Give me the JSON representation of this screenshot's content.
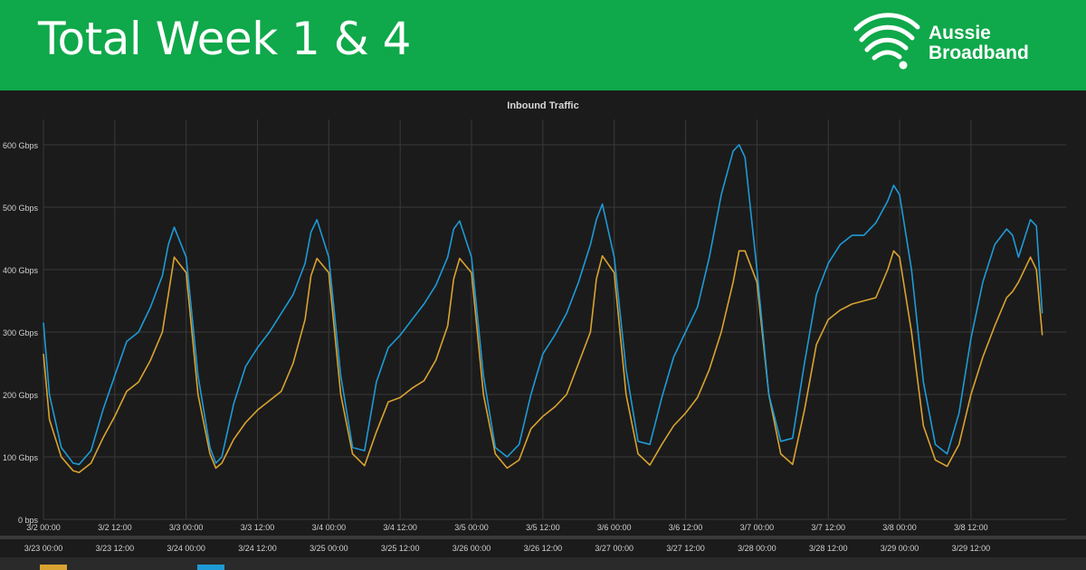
{
  "banner": {
    "title": "Total Week 1 & 4"
  },
  "brand": {
    "line1": "Aussie",
    "line2": "Broadband",
    "logo_icon": "wifi-signal-icon"
  },
  "colors": {
    "banner_green": "#0fa84a",
    "week1_series": "#d9a331",
    "week4_series": "#1e9ad6",
    "background": "#1b1b1b",
    "grid": "#3a3a3a"
  },
  "chart_data": {
    "type": "line",
    "title": "Inbound Traffic",
    "ylabel": "",
    "xlabel": "",
    "grid": true,
    "ylim": [
      0,
      600
    ],
    "yticks": [
      {
        "value": 0,
        "label": "0 bps"
      },
      {
        "value": 100,
        "label": "100 Gbps"
      },
      {
        "value": 200,
        "label": "200 Gbps"
      },
      {
        "value": 300,
        "label": "300 Gbps"
      },
      {
        "value": 400,
        "label": "400 Gbps"
      },
      {
        "value": 500,
        "label": "500 Gbps"
      },
      {
        "value": 600,
        "label": "600 Gbps"
      }
    ],
    "xlim": [
      0,
      172
    ],
    "xticks_top": [
      {
        "h": 0,
        "label": "3/2 00:00"
      },
      {
        "h": 12,
        "label": "3/2 12:00"
      },
      {
        "h": 24,
        "label": "3/3 00:00"
      },
      {
        "h": 36,
        "label": "3/3 12:00"
      },
      {
        "h": 48,
        "label": "3/4 00:00"
      },
      {
        "h": 60,
        "label": "3/4 12:00"
      },
      {
        "h": 72,
        "label": "3/5 00:00"
      },
      {
        "h": 84,
        "label": "3/5 12:00"
      },
      {
        "h": 96,
        "label": "3/6 00:00"
      },
      {
        "h": 108,
        "label": "3/6 12:00"
      },
      {
        "h": 120,
        "label": "3/7 00:00"
      },
      {
        "h": 132,
        "label": "3/7 12:00"
      },
      {
        "h": 144,
        "label": "3/8 00:00"
      },
      {
        "h": 156,
        "label": "3/8 12:00"
      }
    ],
    "xticks_bottom": [
      {
        "h": 0,
        "label": "3/23 00:00"
      },
      {
        "h": 12,
        "label": "3/23 12:00"
      },
      {
        "h": 24,
        "label": "3/24 00:00"
      },
      {
        "h": 36,
        "label": "3/24 12:00"
      },
      {
        "h": 48,
        "label": "3/25 00:00"
      },
      {
        "h": 60,
        "label": "3/25 12:00"
      },
      {
        "h": 72,
        "label": "3/26 00:00"
      },
      {
        "h": 84,
        "label": "3/26 12:00"
      },
      {
        "h": 96,
        "label": "3/27 00:00"
      },
      {
        "h": 108,
        "label": "3/27 12:00"
      },
      {
        "h": 120,
        "label": "3/28 00:00"
      },
      {
        "h": 132,
        "label": "3/28 12:00"
      },
      {
        "h": 144,
        "label": "3/29 00:00"
      },
      {
        "h": 156,
        "label": "3/29 12:00"
      }
    ],
    "series": [
      {
        "color": "#d9a331",
        "x": [
          0,
          1,
          3,
          5,
          6,
          8,
          10,
          12,
          14,
          16,
          18,
          20,
          21,
          22,
          24,
          26,
          28,
          29,
          30,
          32,
          34,
          36,
          38,
          40,
          42,
          44,
          45,
          46,
          48,
          50,
          52,
          54,
          56,
          58,
          60,
          62,
          64,
          66,
          68,
          69,
          70,
          72,
          74,
          76,
          78,
          80,
          82,
          84,
          86,
          88,
          90,
          92,
          93,
          94,
          96,
          98,
          100,
          102,
          104,
          106,
          108,
          110,
          112,
          114,
          116,
          117,
          118,
          120,
          122,
          124,
          126,
          128,
          130,
          132,
          134,
          136,
          138,
          140,
          142,
          143,
          144,
          146,
          148,
          150,
          152,
          154,
          156,
          158,
          160,
          162,
          163,
          164,
          166,
          167,
          168
        ],
        "y": [
          265,
          160,
          100,
          78,
          75,
          90,
          130,
          165,
          205,
          220,
          255,
          300,
          360,
          420,
          395,
          200,
          105,
          82,
          90,
          128,
          155,
          175,
          190,
          205,
          250,
          320,
          390,
          418,
          395,
          200,
          105,
          86,
          140,
          188,
          195,
          210,
          222,
          255,
          310,
          385,
          418,
          395,
          200,
          105,
          82,
          95,
          145,
          165,
          180,
          200,
          250,
          300,
          385,
          422,
          395,
          200,
          105,
          87,
          120,
          150,
          170,
          195,
          240,
          300,
          380,
          430,
          430,
          380,
          200,
          105,
          88,
          175,
          280,
          320,
          335,
          345,
          350,
          355,
          400,
          430,
          420,
          300,
          150,
          95,
          85,
          120,
          200,
          260,
          310,
          355,
          365,
          380,
          420,
          400,
          295
        ]
      },
      {
        "color": "#1e9ad6",
        "x": [
          0,
          1,
          3,
          5,
          6,
          8,
          10,
          12,
          14,
          16,
          18,
          20,
          21,
          22,
          24,
          26,
          28,
          29,
          30,
          32,
          34,
          36,
          38,
          40,
          42,
          44,
          45,
          46,
          48,
          50,
          52,
          54,
          56,
          58,
          60,
          62,
          64,
          66,
          68,
          69,
          70,
          72,
          74,
          76,
          78,
          80,
          82,
          84,
          86,
          88,
          90,
          92,
          93,
          94,
          96,
          98,
          100,
          102,
          104,
          106,
          108,
          110,
          112,
          114,
          116,
          117,
          118,
          120,
          122,
          124,
          126,
          128,
          130,
          132,
          134,
          136,
          138,
          140,
          142,
          143,
          144,
          146,
          148,
          150,
          152,
          154,
          156,
          158,
          160,
          162,
          163,
          164,
          166,
          167,
          168
        ],
        "y": [
          315,
          200,
          115,
          90,
          88,
          110,
          175,
          230,
          285,
          300,
          340,
          390,
          440,
          468,
          420,
          230,
          115,
          90,
          100,
          185,
          245,
          275,
          300,
          330,
          360,
          410,
          460,
          480,
          420,
          230,
          115,
          110,
          220,
          275,
          295,
          320,
          345,
          375,
          420,
          465,
          478,
          420,
          230,
          115,
          100,
          120,
          200,
          265,
          295,
          330,
          380,
          440,
          480,
          505,
          420,
          240,
          125,
          120,
          195,
          260,
          300,
          340,
          420,
          520,
          590,
          600,
          580,
          400,
          200,
          125,
          130,
          250,
          360,
          410,
          440,
          455,
          455,
          475,
          510,
          535,
          520,
          400,
          220,
          120,
          105,
          170,
          290,
          380,
          440,
          465,
          455,
          420,
          480,
          470,
          330
        ]
      }
    ]
  }
}
